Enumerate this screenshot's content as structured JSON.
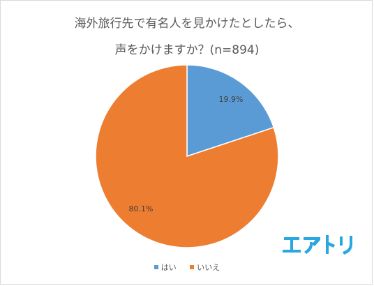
{
  "title_lines": [
    "海外旅行先で有名人を見かけたとしたら、",
    "声をかけますか？(n=894)"
  ],
  "logo_text": "エアトリ",
  "colors": {
    "yes": "#5b9bd5",
    "no": "#ed7d31",
    "logo": "#29a8e0",
    "text": "#595959"
  },
  "chart_data": {
    "type": "pie",
    "title": "海外旅行先で有名人を見かけたとしたら、声をかけますか？(n=894)",
    "labels": [
      "はい",
      "いいえ"
    ],
    "values": [
      19.9,
      80.1
    ],
    "data_labels": [
      "19.9%",
      "80.1%"
    ],
    "start_angle_deg": 0,
    "direction": "clockwise",
    "legend_position": "bottom"
  },
  "legend": [
    {
      "label": "はい",
      "color_key": "yes"
    },
    {
      "label": "いいえ",
      "color_key": "no"
    }
  ]
}
